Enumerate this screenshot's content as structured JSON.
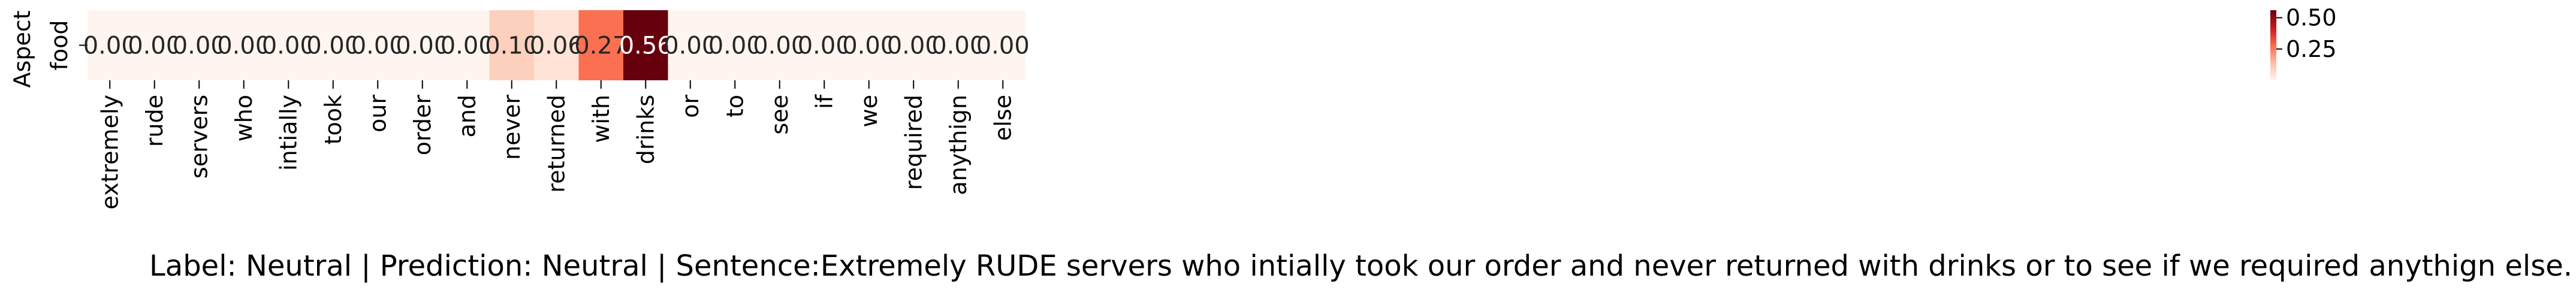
{
  "chart_data": {
    "type": "heatmap",
    "ylabel": "Aspect",
    "rows": [
      "food"
    ],
    "columns": [
      "extremely",
      "rude",
      "servers",
      "who",
      "intially",
      "took",
      "our",
      "order",
      "and",
      "never",
      "returned",
      "with",
      "drinks",
      "or",
      "to",
      "see",
      "if",
      "we",
      "required",
      "anythign",
      "else"
    ],
    "values": [
      [
        0.0,
        0.0,
        0.0,
        0.0,
        0.0,
        0.0,
        0.0,
        0.0,
        0.0,
        0.1,
        0.06,
        0.27,
        0.56,
        0.0,
        0.0,
        0.0,
        0.0,
        0.0,
        0.0,
        0.0,
        0.0
      ]
    ],
    "cell_labels": [
      [
        "0.00",
        "0.00",
        "0.00",
        "0.00",
        "0.00",
        "0.00",
        "0.00",
        "0.00",
        "0.00",
        "0.10",
        "0.06",
        "0.27",
        "0.56",
        "0.00",
        "0.00",
        "0.00",
        "0.00",
        "0.00",
        "0.00",
        "0.00",
        "0.00"
      ]
    ],
    "colormap": "Reds",
    "colorbar": {
      "range": [
        0,
        0.56
      ],
      "ticks": [
        0.25,
        0.5
      ],
      "tick_labels": [
        "0.25",
        "0.50"
      ]
    },
    "caption": "Label: Neutral | Prediction: Neutral | Sentence:Extremely RUDE servers who intially took our order and never returned with drinks or to see if we required anythign else."
  }
}
